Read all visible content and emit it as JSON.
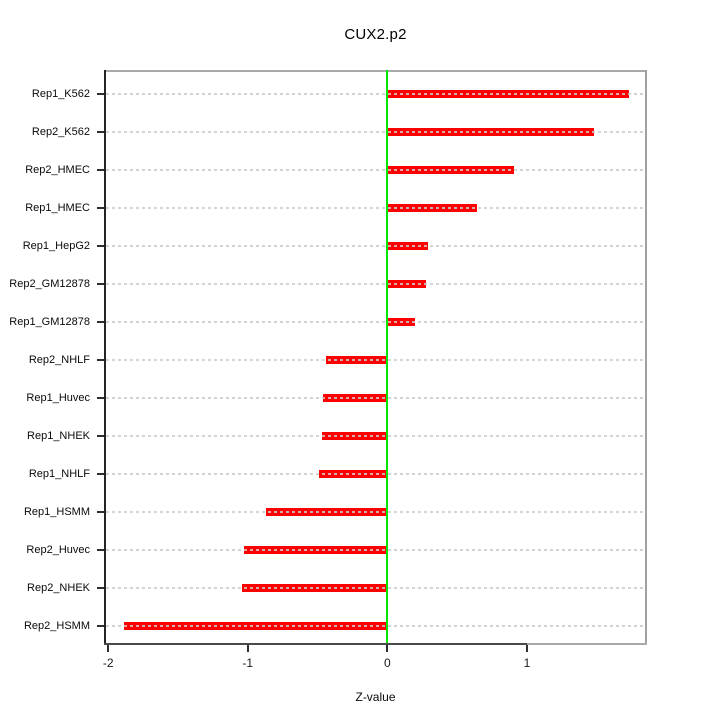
{
  "chart_data": {
    "type": "bar",
    "orientation": "horizontal",
    "title": "CUX2.p2",
    "xlabel": "Z-value",
    "categories": [
      "Rep1_K562",
      "Rep2_K562",
      "Rep2_HMEC",
      "Rep1_HMEC",
      "Rep1_HepG2",
      "Rep2_GM12878",
      "Rep1_GM12878",
      "Rep2_NHLF",
      "Rep1_Huvec",
      "Rep1_NHEK",
      "Rep1_NHLF",
      "Rep1_HSMM",
      "Rep2_Huvec",
      "Rep2_NHEK",
      "Rep2_HSMM"
    ],
    "values": [
      1.73,
      1.48,
      0.91,
      0.64,
      0.29,
      0.28,
      0.2,
      -0.44,
      -0.46,
      -0.47,
      -0.49,
      -0.87,
      -1.03,
      -1.04,
      -1.89
    ],
    "xlim": [
      -2.03,
      1.86
    ],
    "x_ticks": [
      -2,
      -1,
      0,
      1
    ],
    "x_tick_labels": [
      "-2",
      "-1",
      "0",
      "1"
    ],
    "grid": "dashed horizontal line per category, drawn across full plot width over bars",
    "legend_position": "none",
    "zero_line_value": 0,
    "colors": {
      "bar": "#ff0000",
      "zero_line": "#00e600",
      "gridline": "#cdcdcd",
      "box": "#a9a9a9",
      "axis": "#2e2e2e",
      "background": "#ffffff"
    }
  }
}
